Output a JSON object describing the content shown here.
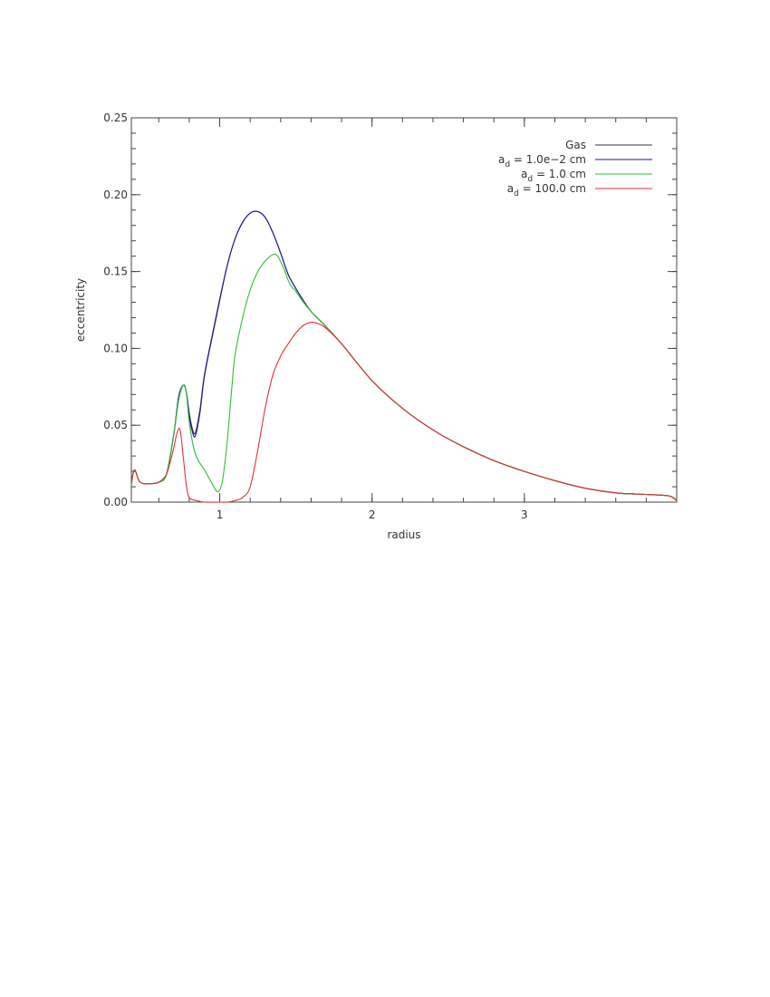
{
  "chart_data": {
    "type": "line",
    "xlabel": "radius",
    "ylabel": "eccentricity",
    "xlim": [
      0.42,
      4.0
    ],
    "ylim": [
      0.0,
      0.25
    ],
    "x_ticks": [
      1,
      2,
      3
    ],
    "x_tick_labels": [
      "1",
      "2",
      "3"
    ],
    "y_ticks": [
      0.0,
      0.05,
      0.1,
      0.15,
      0.2,
      0.25
    ],
    "y_tick_labels": [
      "0.00",
      "0.05",
      "0.10",
      "0.15",
      "0.20",
      "0.25"
    ],
    "grid": false,
    "legend_position": "top-right",
    "legend": [
      {
        "label": "Gas",
        "sub": ""
      },
      {
        "label": "a",
        "sub": "d",
        "suffix": " = 1.0e−2 cm"
      },
      {
        "label": "a",
        "sub": "d",
        "suffix": " = 1.0 cm"
      },
      {
        "label": "a",
        "sub": "d",
        "suffix": " = 100.0 cm"
      }
    ],
    "series": [
      {
        "name": "Gas",
        "color": "#333333",
        "x": [
          0.42,
          0.44,
          0.47,
          0.5,
          0.55,
          0.6,
          0.65,
          0.7,
          0.73,
          0.76,
          0.78,
          0.8,
          0.82,
          0.84,
          0.87,
          0.9,
          0.95,
          1.0,
          1.05,
          1.1,
          1.15,
          1.2,
          1.25,
          1.3,
          1.35,
          1.4,
          1.45,
          1.5,
          1.55,
          1.6,
          1.65,
          1.7,
          1.8,
          2.0,
          2.2,
          2.4,
          2.6,
          2.8,
          3.0,
          3.2,
          3.4,
          3.6,
          3.8,
          3.95,
          4.0
        ],
        "y": [
          0.012,
          0.021,
          0.014,
          0.012,
          0.012,
          0.013,
          0.018,
          0.045,
          0.068,
          0.076,
          0.072,
          0.058,
          0.048,
          0.045,
          0.06,
          0.083,
          0.108,
          0.132,
          0.154,
          0.171,
          0.182,
          0.188,
          0.189,
          0.185,
          0.175,
          0.162,
          0.148,
          0.139,
          0.131,
          0.124,
          0.119,
          0.114,
          0.103,
          0.079,
          0.061,
          0.047,
          0.036,
          0.027,
          0.02,
          0.014,
          0.009,
          0.006,
          0.005,
          0.004,
          0.001
        ]
      },
      {
        "name": "a_d = 1.0e-2 cm",
        "color": "#1a1a99",
        "x": [
          0.42,
          0.44,
          0.47,
          0.5,
          0.55,
          0.6,
          0.65,
          0.7,
          0.73,
          0.76,
          0.78,
          0.8,
          0.82,
          0.84,
          0.87,
          0.9,
          0.95,
          1.0,
          1.05,
          1.1,
          1.15,
          1.2,
          1.25,
          1.3,
          1.35,
          1.4,
          1.45,
          1.5,
          1.55,
          1.6,
          1.65,
          1.7,
          1.8,
          2.0,
          2.2,
          2.4,
          2.6,
          2.8,
          3.0,
          3.2,
          3.4,
          3.6,
          3.8,
          3.95,
          4.0
        ],
        "y": [
          0.012,
          0.021,
          0.014,
          0.012,
          0.012,
          0.013,
          0.018,
          0.045,
          0.068,
          0.076,
          0.072,
          0.056,
          0.046,
          0.043,
          0.058,
          0.082,
          0.107,
          0.131,
          0.154,
          0.171,
          0.182,
          0.188,
          0.189,
          0.185,
          0.175,
          0.162,
          0.148,
          0.139,
          0.131,
          0.124,
          0.119,
          0.114,
          0.103,
          0.079,
          0.061,
          0.047,
          0.036,
          0.027,
          0.02,
          0.014,
          0.009,
          0.006,
          0.005,
          0.004,
          0.001
        ]
      },
      {
        "name": "a_d = 1.0 cm",
        "color": "#33bb33",
        "x": [
          0.42,
          0.44,
          0.47,
          0.5,
          0.55,
          0.6,
          0.65,
          0.7,
          0.73,
          0.76,
          0.78,
          0.8,
          0.83,
          0.86,
          0.9,
          0.95,
          0.98,
          1.0,
          1.02,
          1.05,
          1.08,
          1.1,
          1.15,
          1.2,
          1.25,
          1.3,
          1.35,
          1.38,
          1.42,
          1.46,
          1.5,
          1.55,
          1.6,
          1.65,
          1.7,
          1.8,
          2.0,
          2.2,
          2.4,
          2.6,
          2.8,
          3.0,
          3.2,
          3.4,
          3.6,
          3.8,
          3.95,
          4.0
        ],
        "y": [
          0.012,
          0.021,
          0.014,
          0.012,
          0.012,
          0.013,
          0.018,
          0.045,
          0.066,
          0.076,
          0.072,
          0.052,
          0.035,
          0.027,
          0.021,
          0.012,
          0.007,
          0.008,
          0.015,
          0.04,
          0.075,
          0.095,
          0.12,
          0.138,
          0.15,
          0.157,
          0.161,
          0.16,
          0.152,
          0.142,
          0.137,
          0.13,
          0.124,
          0.119,
          0.114,
          0.103,
          0.079,
          0.061,
          0.047,
          0.036,
          0.027,
          0.02,
          0.014,
          0.009,
          0.006,
          0.005,
          0.004,
          0.001
        ]
      },
      {
        "name": "a_d = 100.0 cm",
        "color": "#dd3333",
        "x": [
          0.42,
          0.44,
          0.47,
          0.5,
          0.55,
          0.6,
          0.65,
          0.68,
          0.7,
          0.72,
          0.74,
          0.76,
          0.78,
          0.8,
          0.85,
          0.9,
          1.0,
          1.05,
          1.1,
          1.15,
          1.2,
          1.25,
          1.3,
          1.35,
          1.4,
          1.45,
          1.5,
          1.55,
          1.6,
          1.65,
          1.7,
          1.8,
          2.0,
          2.2,
          2.4,
          2.6,
          2.8,
          3.0,
          3.2,
          3.4,
          3.6,
          3.8,
          3.95,
          4.0
        ],
        "y": [
          0.012,
          0.021,
          0.014,
          0.012,
          0.012,
          0.013,
          0.018,
          0.028,
          0.036,
          0.045,
          0.047,
          0.03,
          0.012,
          0.003,
          0.001,
          0.0,
          0.0,
          0.0,
          0.001,
          0.003,
          0.01,
          0.034,
          0.062,
          0.083,
          0.095,
          0.103,
          0.11,
          0.115,
          0.117,
          0.116,
          0.113,
          0.103,
          0.079,
          0.061,
          0.047,
          0.036,
          0.027,
          0.02,
          0.014,
          0.009,
          0.006,
          0.005,
          0.004,
          0.001
        ]
      }
    ]
  }
}
